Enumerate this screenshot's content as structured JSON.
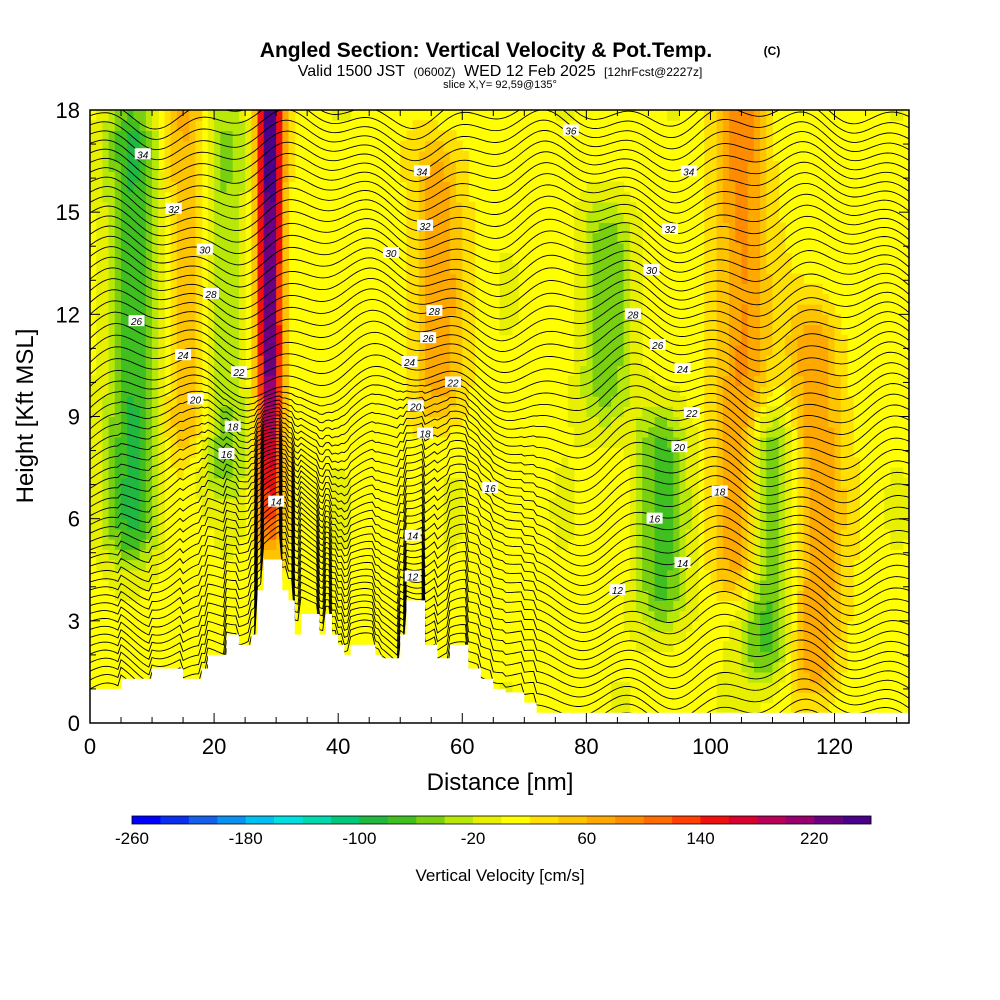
{
  "title": "Angled Section: Vertical Velocity & Pot.Temp.",
  "copyright": "(C)",
  "subtitle_main": "Valid 1500 JST",
  "subtitle_utc": "(0600Z)",
  "subtitle_date": "WED 12 Feb 2025",
  "subtitle_fcst": "[12hrFcst@2227z]",
  "slice": "slice X,Y= 92,59@135°",
  "chart_data": {
    "type": "heatmap",
    "title": "Angled Section: Vertical Velocity & Pot.Temp.",
    "xlabel": "Distance [nm]",
    "ylabel": "Height [Kft MSL]",
    "xlim": [
      0,
      132
    ],
    "ylim": [
      0,
      18
    ],
    "x_ticks": [
      0,
      20,
      40,
      60,
      80,
      100,
      120
    ],
    "y_ticks": [
      0,
      3,
      6,
      9,
      12,
      15,
      18
    ],
    "colorbar": {
      "label": "Vertical Velocity [cm/s]",
      "ticks": [
        -260,
        -180,
        -100,
        -20,
        60,
        140,
        220
      ],
      "range": [
        -260,
        260
      ],
      "colors": [
        "#0000ff",
        "#0a2ef0",
        "#1560e8",
        "#0a90f0",
        "#00c0f0",
        "#00e0e0",
        "#00d8b0",
        "#00c878",
        "#20b840",
        "#40c020",
        "#78d010",
        "#b8e808",
        "#e8f000",
        "#ffff00",
        "#ffe000",
        "#ffc400",
        "#ffa800",
        "#ff8c00",
        "#ff6c00",
        "#ff4000",
        "#f01010",
        "#d8002c",
        "#b8005a",
        "#980070",
        "#6a0080",
        "#4a0088"
      ]
    },
    "terrain_profile": {
      "x": [
        0,
        4,
        5,
        9,
        10,
        14,
        15,
        18,
        19,
        22,
        23,
        24,
        25,
        26,
        27,
        28,
        29,
        30,
        31,
        32,
        33,
        34,
        35,
        36,
        37,
        38,
        39,
        40,
        41,
        42,
        43,
        44,
        45,
        46,
        47,
        48,
        49,
        50,
        51,
        52,
        53,
        54,
        55,
        56,
        57,
        58,
        59,
        60,
        61,
        62,
        63,
        64,
        65,
        66,
        67,
        68,
        69,
        70,
        71,
        72,
        132
      ],
      "h": [
        1.0,
        1.0,
        1.3,
        1.3,
        1.6,
        1.6,
        1.3,
        1.6,
        2.0,
        2.6,
        2.6,
        2.3,
        2.3,
        2.6,
        3.9,
        4.8,
        4.8,
        4.8,
        3.9,
        3.6,
        2.6,
        3.2,
        3.2,
        3.2,
        2.6,
        3.2,
        2.6,
        2.3,
        2.0,
        2.3,
        2.3,
        2.3,
        2.3,
        2.0,
        1.9,
        1.9,
        1.9,
        2.6,
        3.6,
        3.6,
        3.6,
        2.3,
        2.3,
        1.9,
        1.9,
        2.3,
        2.3,
        2.3,
        1.6,
        1.6,
        1.3,
        1.3,
        1.0,
        1.0,
        0.9,
        0.9,
        0.9,
        0.6,
        0.6,
        0.3,
        0.3
      ]
    },
    "theta_contours": {
      "units": "C",
      "labels": [
        {
          "text": "34",
          "x": 8.5,
          "y": 16.7
        },
        {
          "text": "32",
          "x": 13.5,
          "y": 15.1
        },
        {
          "text": "30",
          "x": 18.5,
          "y": 13.9
        },
        {
          "text": "28",
          "x": 19.5,
          "y": 12.6
        },
        {
          "text": "26",
          "x": 7.5,
          "y": 11.8
        },
        {
          "text": "24",
          "x": 15.0,
          "y": 10.8
        },
        {
          "text": "22",
          "x": 24.0,
          "y": 10.3
        },
        {
          "text": "20",
          "x": 17.0,
          "y": 9.5
        },
        {
          "text": "18",
          "x": 23.0,
          "y": 8.7
        },
        {
          "text": "16",
          "x": 22.0,
          "y": 7.9
        },
        {
          "text": "14",
          "x": 30.0,
          "y": 6.5
        },
        {
          "text": "34",
          "x": 53.5,
          "y": 16.2
        },
        {
          "text": "32",
          "x": 54.0,
          "y": 14.6
        },
        {
          "text": "30",
          "x": 48.5,
          "y": 13.8
        },
        {
          "text": "28",
          "x": 55.5,
          "y": 12.1
        },
        {
          "text": "26",
          "x": 54.5,
          "y": 11.3
        },
        {
          "text": "24",
          "x": 51.5,
          "y": 10.6
        },
        {
          "text": "22",
          "x": 58.5,
          "y": 10.0
        },
        {
          "text": "20",
          "x": 52.5,
          "y": 9.3
        },
        {
          "text": "18",
          "x": 54.0,
          "y": 8.5
        },
        {
          "text": "16",
          "x": 64.5,
          "y": 6.9
        },
        {
          "text": "14",
          "x": 52.0,
          "y": 5.5
        },
        {
          "text": "12",
          "x": 52.0,
          "y": 4.3
        },
        {
          "text": "36",
          "x": 77.5,
          "y": 17.4
        },
        {
          "text": "34",
          "x": 96.5,
          "y": 16.2
        },
        {
          "text": "32",
          "x": 93.5,
          "y": 14.5
        },
        {
          "text": "30",
          "x": 90.5,
          "y": 13.3
        },
        {
          "text": "28",
          "x": 87.5,
          "y": 12.0
        },
        {
          "text": "26",
          "x": 91.5,
          "y": 11.1
        },
        {
          "text": "24",
          "x": 95.5,
          "y": 10.4
        },
        {
          "text": "22",
          "x": 97.0,
          "y": 9.1
        },
        {
          "text": "20",
          "x": 95.0,
          "y": 8.1
        },
        {
          "text": "18",
          "x": 101.5,
          "y": 6.8
        },
        {
          "text": "16",
          "x": 91.0,
          "y": 6.0
        },
        {
          "text": "14",
          "x": 95.5,
          "y": 4.7
        },
        {
          "text": "12",
          "x": 85.0,
          "y": 3.9
        }
      ]
    },
    "velocity_features": [
      {
        "name": "strong updraft",
        "x": 29,
        "y_min": 6.0,
        "y_max": 18,
        "peak": 250
      },
      {
        "name": "updraft",
        "x": 16,
        "y_min": 9,
        "y_max": 18,
        "peak": 60
      },
      {
        "name": "updraft",
        "x": 56,
        "y_min": 10,
        "y_max": 16,
        "peak": 60
      },
      {
        "name": "updraft",
        "x": 105,
        "y_min": 5,
        "y_max": 18,
        "peak": 80
      },
      {
        "name": "updraft",
        "x": 117,
        "y_min": 2,
        "y_max": 11,
        "peak": 70
      },
      {
        "name": "downdraft",
        "x": 7,
        "y_min": 6,
        "y_max": 17,
        "peak": -90
      },
      {
        "name": "downdraft",
        "x": 21,
        "y_min": 8,
        "y_max": 17,
        "peak": -60
      },
      {
        "name": "downdraft",
        "x": 83,
        "y_min": 10,
        "y_max": 14,
        "peak": -60
      },
      {
        "name": "downdraft",
        "x": 92,
        "y_min": 4,
        "y_max": 8,
        "peak": -70
      },
      {
        "name": "downdraft",
        "x": 109,
        "y_min": 2.5,
        "y_max": 8,
        "peak": -80
      }
    ]
  }
}
